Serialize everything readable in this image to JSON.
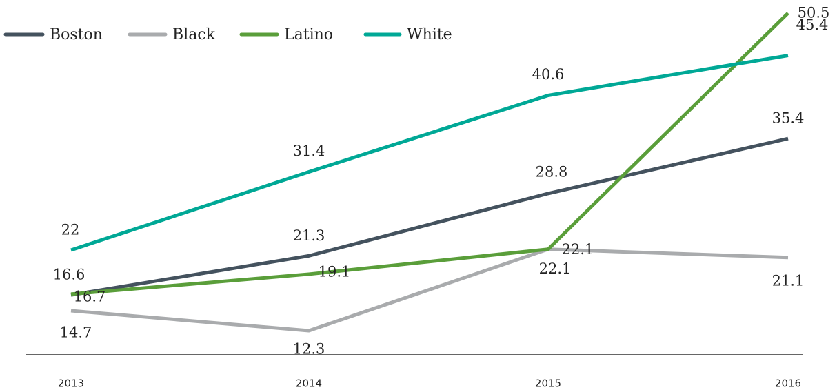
{
  "chart_data": {
    "type": "line",
    "categories": [
      "2013",
      "2014",
      "2015",
      "2016"
    ],
    "series": [
      {
        "name": "Boston",
        "color": "#44525e",
        "values": [
          16.6,
          21.3,
          28.8,
          35.4
        ]
      },
      {
        "name": "Black",
        "color": "#a9abad",
        "values": [
          14.7,
          12.3,
          22.1,
          21.1
        ]
      },
      {
        "name": "Latino",
        "color": "#5a9e3a",
        "values": [
          16.7,
          19.1,
          22.1,
          50.5
        ]
      },
      {
        "name": "White",
        "color": "#00a896",
        "values": [
          22,
          31.4,
          40.6,
          45.4
        ]
      }
    ],
    "legend": "top-left"
  }
}
